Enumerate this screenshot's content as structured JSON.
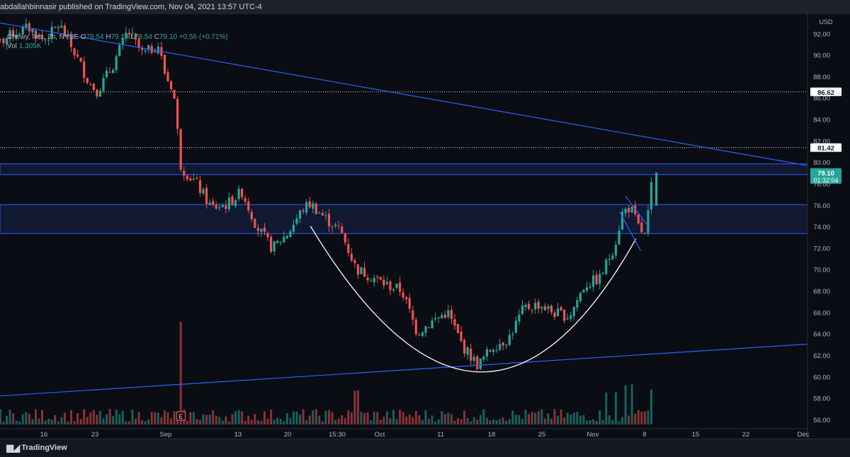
{
  "header": {
    "published": "abdallahbinnasir published on TradingView.com, Nov 04, 2021 13:57 UTC-4"
  },
  "legend": {
    "symbol": "Chewy, Inc., 2h, NYSE",
    "o_label": "O",
    "o_value": "78.54",
    "h_label": "H",
    "h_value": "79.13",
    "l_label": "L",
    "l_value": "78.54",
    "c_label": "C",
    "c_value": "79.10",
    "change": "+0.56 (+0.71%)",
    "vol_label": "Vol",
    "vol_value": "1.305K"
  },
  "footer": {
    "brand": "TradingView"
  },
  "colors": {
    "up": "#26a69a",
    "down": "#ef5350",
    "trendline": "#2962ff",
    "zone": "#1e3a8a",
    "cup": "#ffffff",
    "price_tag": "#26a69a"
  },
  "chart_data": {
    "type": "candlestick",
    "symbol": "CHWY",
    "timeframe": "2h",
    "currency": "USD",
    "y_axis": {
      "unit": "USD",
      "range": [
        55.2,
        93.6
      ],
      "ticks": [
        "92.00",
        "90.00",
        "88.00",
        "86.00",
        "84.00",
        "82.00",
        "80.00",
        "78.00",
        "76.00",
        "74.00",
        "72.00",
        "70.00",
        "68.00",
        "66.00",
        "64.00",
        "62.00",
        "60.00",
        "58.00",
        "56.00"
      ]
    },
    "x_axis": {
      "ticks": [
        "16",
        "23",
        "Sep",
        "13",
        "20",
        "15:30",
        "Oct",
        "11",
        "18",
        "25",
        "Nov",
        "8",
        "15",
        "22",
        "Dec"
      ]
    },
    "price_labels": {
      "level_high": "86.62",
      "level_mid": "81.42",
      "last_price": "79.10",
      "countdown": "01:32:04"
    },
    "horizontal_levels": [
      86.62,
      81.42
    ],
    "zones": [
      {
        "from": 78.9,
        "to": 79.9
      },
      {
        "from": 73.4,
        "to": 76.1
      }
    ],
    "trendlines": [
      {
        "name": "descending resistance",
        "from": [
          "Aug 09",
          93.2
        ],
        "to": [
          "Dec 01",
          78.9
        ]
      },
      {
        "name": "ascending support",
        "from": [
          "Aug 09",
          58.2
        ],
        "to": [
          "Dec 01",
          63.4
        ]
      }
    ],
    "pattern": {
      "name": "cup with handle",
      "cup_start": [
        "Sep 20",
        74.1
      ],
      "cup_bottom": [
        "Oct 12",
        60.5
      ],
      "cup_end": [
        "Nov 01",
        72.9
      ]
    },
    "candles_path": [
      [
        "Aug 09",
        90.6
      ],
      [
        "Aug 12",
        92.1
      ],
      [
        "Aug 14",
        92.6
      ],
      [
        "Aug 16",
        91.4
      ],
      [
        "Aug 18",
        92.9
      ],
      [
        "Aug 20",
        90.3
      ],
      [
        "Aug 22",
        87.4
      ],
      [
        "Aug 23",
        86.7
      ],
      [
        "Aug 25",
        89.0
      ],
      [
        "Aug 27",
        92.3
      ],
      [
        "Aug 29",
        90.1
      ],
      [
        "Aug 31",
        91.0
      ],
      [
        "Sep 01",
        88.0
      ],
      [
        "Sep 02",
        86.9
      ],
      [
        "Sep 03",
        79.6
      ],
      [
        "Sep 05",
        78.1
      ],
      [
        "Sep 07",
        75.8
      ],
      [
        "Sep 09",
        76.1
      ],
      [
        "Sep 11",
        77.3
      ],
      [
        "Sep 13",
        74.0
      ],
      [
        "Sep 15",
        72.0
      ],
      [
        "Sep 17",
        73.4
      ],
      [
        "Sep 19",
        75.7
      ],
      [
        "Sep 20",
        76.2
      ],
      [
        "Sep 22",
        74.8
      ],
      [
        "Sep 24",
        73.6
      ],
      [
        "Sep 26",
        70.1
      ],
      [
        "Sep 28",
        69.4
      ],
      [
        "Sep 30",
        68.6
      ],
      [
        "Oct 02",
        68.1
      ],
      [
        "Oct 04",
        64.2
      ],
      [
        "Oct 06",
        65.2
      ],
      [
        "Oct 08",
        66.1
      ],
      [
        "Oct 10",
        62.9
      ],
      [
        "Oct 12",
        61.1
      ],
      [
        "Oct 14",
        62.9
      ],
      [
        "Oct 16",
        63.6
      ],
      [
        "Oct 18",
        66.4
      ],
      [
        "Oct 20",
        66.8
      ],
      [
        "Oct 22",
        66.0
      ],
      [
        "Oct 24",
        65.7
      ],
      [
        "Oct 26",
        68.6
      ],
      [
        "Oct 28",
        69.2
      ],
      [
        "Oct 30",
        72.4
      ],
      [
        "Oct 31",
        75.4
      ],
      [
        "Nov 01",
        75.9
      ],
      [
        "Nov 02",
        74.1
      ],
      [
        "Nov 03",
        73.1
      ],
      [
        "Nov 04",
        79.1
      ]
    ],
    "volume": {
      "max_spike_date": "Sep 03",
      "earnings_marker": "E"
    },
    "grid": false,
    "legend": "top-left"
  }
}
